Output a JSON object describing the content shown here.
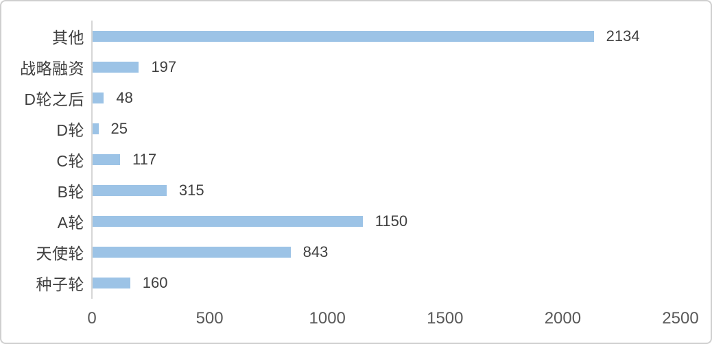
{
  "frame": {
    "background": "#FFFFFF",
    "border_color": "#CFCFCF"
  },
  "chart_data": {
    "type": "bar",
    "orientation": "horizontal",
    "title": "",
    "categories": [
      "其他",
      "战略融资",
      "D轮之后",
      "D轮",
      "C轮",
      "B轮",
      "A轮",
      "天使轮",
      "种子轮"
    ],
    "values": [
      2134,
      197,
      48,
      25,
      117,
      315,
      1150,
      843,
      160
    ],
    "x_ticks": [
      0,
      500,
      1000,
      1500,
      2000,
      2500
    ],
    "xlim": [
      0,
      2500
    ],
    "xlabel": "",
    "ylabel": "",
    "grid": false,
    "legend_position": "none",
    "data_labels": true,
    "colors": {
      "bar": "#9CC3E6",
      "axis_line": "#D6D6D6",
      "category_label": "#3F3F3F",
      "value_label": "#404040",
      "tick_label": "#595959"
    }
  }
}
